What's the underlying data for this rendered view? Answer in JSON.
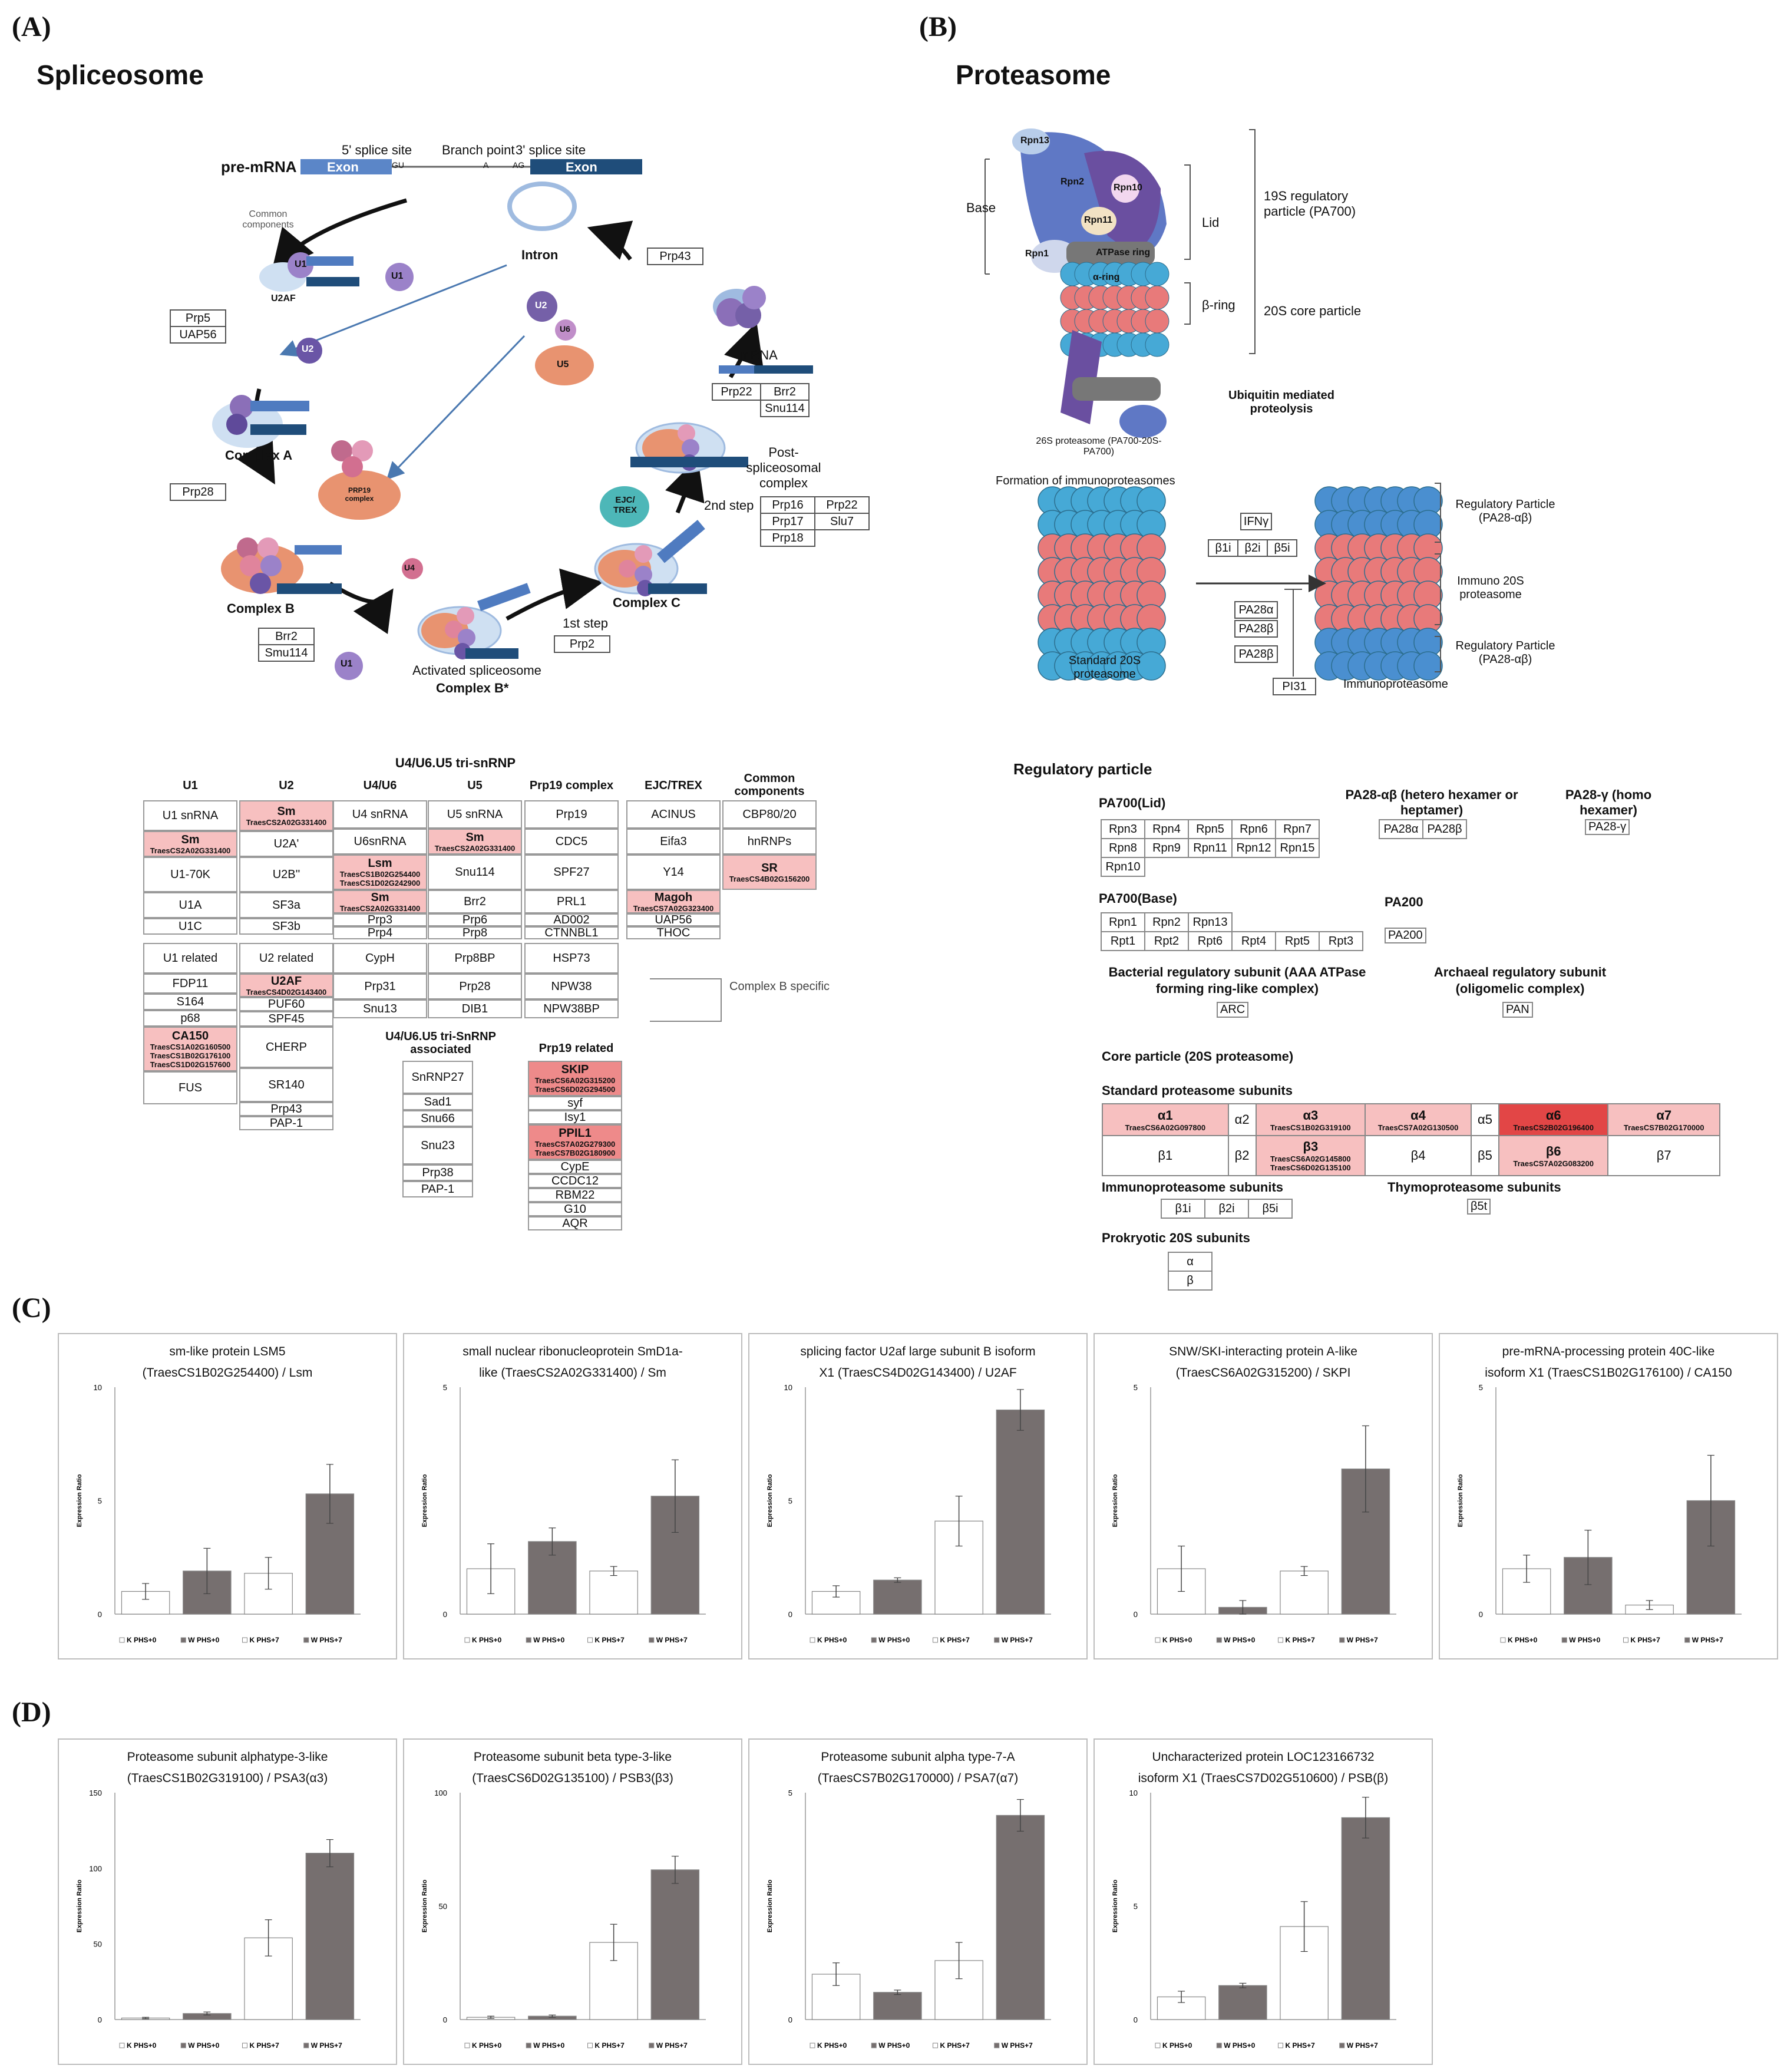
{
  "panels": {
    "A": "(A)",
    "B": "(B)",
    "C": "(C)",
    "D": "(D)"
  },
  "spliceosome": {
    "title": "Spliceosome",
    "premrna": "pre-mRNA",
    "exon1": "Exon",
    "exon2": "Exon",
    "site5": "5' splice site",
    "branch": "Branch point",
    "site3": "3' splice site",
    "gu": "GU",
    "a": "A",
    "ag": "AG",
    "common": "Common components",
    "intron": "Intron",
    "complexA": "Complex A",
    "complexB": "Complex B",
    "complexBstar": "Complex B*",
    "complexC": "Complex C",
    "activated": "Activated spliceosome",
    "post": "Post-spliceosomal complex",
    "mrna": "mRNA",
    "step1": "1st step",
    "step2": "2nd step",
    "prp19complex": "PRP19 complex",
    "ejc": "EJC/ TREX",
    "boxes": {
      "prp5": "Prp5",
      "uap56": "UAP56",
      "prp28": "Prp28",
      "brr2": "Brr2",
      "smu114": "Smu114",
      "prp2": "Prp2",
      "prp43": "Prp43",
      "prp22": "Prp22",
      "brr2b": "Brr2",
      "snu114": "Snu114",
      "prp16": "Prp16",
      "prp22b": "Prp22",
      "prp17": "Prp17",
      "slu7": "Slu7",
      "prp18": "Prp18"
    },
    "particles": {
      "u1": "U1",
      "u2": "U2",
      "u2af": "U2AF",
      "u4": "U4",
      "u5": "U5",
      "u6": "U6"
    },
    "table": {
      "tri_header": "U4/U6.U5 tri-snRNP",
      "cols": [
        "U1",
        "U2",
        "U4/U6",
        "U5",
        "Prp19 complex",
        "EJC/TREX",
        "Common components"
      ],
      "u1": [
        {
          "t": "U1 snRNA"
        },
        {
          "t": "Sm",
          "id": "TraesCS2A02G331400",
          "hl": 1
        },
        {
          "t": "U1-70K"
        },
        {
          "t": "U1A"
        },
        {
          "t": "U1C"
        }
      ],
      "u2": [
        {
          "t": "Sm",
          "id": "TraesCS2A02G331400",
          "hl": 1
        },
        {
          "t": "U2A'"
        },
        {
          "t": "U2B''"
        },
        {
          "t": "SF3a"
        },
        {
          "t": "SF3b"
        }
      ],
      "u46": [
        {
          "t": "U4 snRNA"
        },
        {
          "t": "U6snRNA"
        },
        {
          "t": "Lsm",
          "id": "TraesCS1B02G254400 TraesCS1D02G242900",
          "hl": 1
        },
        {
          "t": "Sm",
          "id": "TraesCS2A02G331400",
          "hl": 1
        },
        {
          "t": "Prp3"
        },
        {
          "t": "Prp4"
        }
      ],
      "u5": [
        {
          "t": "U5 snRNA"
        },
        {
          "t": "Sm",
          "id": "TraesCS2A02G331400",
          "hl": 1
        },
        {
          "t": "Snu114"
        },
        {
          "t": "Brr2"
        },
        {
          "t": "Prp6"
        },
        {
          "t": "Prp8"
        }
      ],
      "prp19": [
        {
          "t": "Prp19"
        },
        {
          "t": "CDC5"
        },
        {
          "t": "SPF27"
        },
        {
          "t": "PRL1"
        },
        {
          "t": "AD002"
        },
        {
          "t": "CTNNBL1"
        }
      ],
      "ejc": [
        {
          "t": "ACINUS"
        },
        {
          "t": "Eifa3"
        },
        {
          "t": "Y14"
        },
        {
          "t": "Magoh",
          "id": "TraesCS7A02G323400",
          "hl": 1
        },
        {
          "t": "UAP56"
        },
        {
          "t": "THOC"
        }
      ],
      "common": [
        {
          "t": "CBP80/20"
        },
        {
          "t": "hnRNPs"
        },
        {
          "t": "SR",
          "id": "TraesCS4B02G156200",
          "hl": 1
        }
      ],
      "u1rel_h": "U1 related",
      "u1rel": [
        {
          "t": "FDP11"
        },
        {
          "t": "S164"
        },
        {
          "t": "p68"
        },
        {
          "t": "CA150",
          "id": "TraesCS1A02G160500 TraesCS1B02G176100 TraesCS1D02G157600",
          "hl": 1
        },
        {
          "t": "FUS"
        }
      ],
      "u2rel_h": "U2 related",
      "u2rel": [
        {
          "t": "U2AF",
          "id": "TraesCS4D02G143400",
          "hl": 1
        },
        {
          "t": "PUF60"
        },
        {
          "t": "SPF45"
        },
        {
          "t": "CHERP"
        },
        {
          "t": "SR140"
        },
        {
          "t": "Prp43"
        },
        {
          "t": "PAP-1"
        }
      ],
      "u46b": [
        "CypH",
        "Prp31",
        "Snu13"
      ],
      "u5b": [
        "Prp8BP",
        "Prp28",
        "DIB1"
      ],
      "prp19b": [
        "HSP73",
        "NPW38",
        "NPW38BP"
      ],
      "bspec": "Complex B specific",
      "assoc_h": "U4/U6.U5 tri-SnRNP associated",
      "assoc": [
        "SnRNP27",
        "Sad1",
        "Snu66",
        "Snu23",
        "Prp38",
        "PAP-1"
      ],
      "prp19rel_h": "Prp19 related",
      "prp19rel": [
        {
          "t": "SKIP",
          "id": "TraesCS6A02G315200 TraesCS6D02G294500",
          "hl": 2
        },
        {
          "t": "syf"
        },
        {
          "t": "Isy1"
        },
        {
          "t": "PPIL1",
          "id": "TraesCS7A02G279300 TraesCS7B02G180900",
          "hl": 2
        },
        {
          "t": "CypE"
        },
        {
          "t": "CCDC12"
        },
        {
          "t": "RBM22"
        },
        {
          "t": "G10"
        },
        {
          "t": "AQR"
        }
      ]
    }
  },
  "proteasome": {
    "title": "Proteasome",
    "base": "Base",
    "lid": "Lid",
    "rp19": "19S regulatory particle (PA700)",
    "cp20": "20S core particle",
    "bring": "β-ring",
    "aring": "α-ring",
    "atpase": "ATPase ring",
    "ubiq": "Ubiquitin mediated proteolysis",
    "p26": "26S proteasome (PA700-20S-PA700)",
    "rpn13": "Rpn13",
    "rpn2": "Rpn2",
    "rpn10": "Rpn10",
    "rpn11": "Rpn11",
    "rpn1": "Rpn1",
    "formation": "Formation of immunoproteasomes",
    "ifn": "IFNγ",
    "b1i": "β1i",
    "b2i": "β2i",
    "b5i": "β5i",
    "pa28a": "PA28α",
    "pa28b1": "PA28β",
    "pa28b2": "PA28β",
    "pi31": "PI31",
    "std20s": "Standard 20S proteasome",
    "immuno": "Immunoproteasome",
    "regA": "Regulatory Particle (PA28-αβ)",
    "immuno20s": "Immuno 20S proteasome",
    "regB": "Regulatory Particle (PA28-αβ)",
    "reg_title": "Regulatory particle",
    "lid_title": "PA700(Lid)",
    "lid_rows": [
      [
        "Rpn3",
        "Rpn4",
        "Rpn5",
        "Rpn6",
        "Rpn7"
      ],
      [
        "Rpn8",
        "Rpn9",
        "Rpn11",
        "Rpn12",
        "Rpn15"
      ],
      [
        "Rpn10"
      ]
    ],
    "pa28ab_title": "PA28-αβ (hetero hexamer or heptamer)",
    "pa28ab": [
      "PA28α",
      "PA28β"
    ],
    "pa28y_title": "PA28-γ (homo hexamer)",
    "pa28y": "PA28-γ",
    "base_title": "PA700(Base)",
    "base_rows": [
      [
        "Rpn1",
        "Rpn2",
        "Rpn13"
      ],
      [
        "Rpt1",
        "Rpt2",
        "Rpt6",
        "Rpt4",
        "Rpt5",
        "Rpt3"
      ]
    ],
    "pa200_title": "PA200",
    "pa200": "PA200",
    "bact_title": "Bacterial regulatory subunit (AAA ATPase forming ring-like complex)",
    "arc": "ARC",
    "arch_title": "Archaeal regulatory subunit (oligomelic complex)",
    "pan": "PAN",
    "core_title": "Core particle (20S proteasome)",
    "std_title": "Standard proteasome subunits",
    "std_row1": [
      {
        "t": "α1",
        "id": "TraesCS6A02G097800",
        "hl": 1
      },
      {
        "t": "α2"
      },
      {
        "t": "α3",
        "id": "TraesCS1B02G319100",
        "hl": 1
      },
      {
        "t": "α4",
        "id": "TraesCS7A02G130500",
        "hl": 1
      },
      {
        "t": "α5"
      },
      {
        "t": "α6",
        "id": "TraesCS2B02G196400",
        "hl": 3
      },
      {
        "t": "α7",
        "id": "TraesCS7B02G170000",
        "hl": 1
      }
    ],
    "std_row2": [
      {
        "t": "β1"
      },
      {
        "t": "β2"
      },
      {
        "t": "β3",
        "id": "TraesCS6A02G145800 TraesCS6D02G135100",
        "hl": 1
      },
      {
        "t": "β4"
      },
      {
        "t": "β5"
      },
      {
        "t": "β6",
        "id": "TraesCS7A02G083200",
        "hl": 1
      },
      {
        "t": "β7"
      }
    ],
    "immuno_title": "Immunoproteasome subunits",
    "immuno_cells": [
      "β1i",
      "β2i",
      "β5i"
    ],
    "thymo_title": "Thymoproteasome subunits",
    "thymo": "β5t",
    "prok_title": "Prokryotic 20S subunits",
    "prok": [
      "α",
      "β"
    ]
  },
  "charts_C": [
    {
      "title1": "sm-like protein LSM5",
      "title2": "(TraesCS1B02G254400) / Lsm",
      "ymax": 10,
      "ticks": [
        0,
        5,
        10
      ],
      "values": [
        1.0,
        1.9,
        1.8,
        5.3
      ],
      "errors": [
        0.35,
        1.0,
        0.7,
        1.3
      ]
    },
    {
      "title1": "small nuclear ribonucleoprotein SmD1a-",
      "title2": "like (TraesCS2A02G331400) / Sm",
      "ymax": 5,
      "ticks": [
        0,
        5
      ],
      "values": [
        1.0,
        1.6,
        0.95,
        2.6
      ],
      "errors": [
        0.55,
        0.3,
        0.1,
        0.8
      ]
    },
    {
      "title1": "splicing factor U2af large subunit B isoform",
      "title2": "X1 (TraesCS4D02G143400) / U2AF",
      "ymax": 10,
      "ticks": [
        0,
        5,
        10
      ],
      "values": [
        1.0,
        1.5,
        4.1,
        9.0
      ],
      "errors": [
        0.25,
        0.1,
        1.1,
        0.9
      ]
    },
    {
      "title1": "SNW/SKI-interacting protein A-like",
      "title2": "(TraesCS6A02G315200) / SKPI",
      "ymax": 5,
      "ticks": [
        0,
        5
      ],
      "values": [
        1.0,
        0.15,
        0.95,
        3.2
      ],
      "errors": [
        0.5,
        0.15,
        0.1,
        0.95
      ]
    },
    {
      "title1": "pre-mRNA-processing protein 40C-like",
      "title2": "isoform X1 (TraesCS1B02G176100) / CA150",
      "ymax": 5,
      "ticks": [
        0,
        5
      ],
      "values": [
        1.0,
        1.25,
        0.2,
        2.5
      ],
      "errors": [
        0.3,
        0.6,
        0.1,
        1.0
      ]
    }
  ],
  "charts_D": [
    {
      "title1": "Proteasome subunit alphatype-3-like",
      "title2": "(TraesCS1B02G319100) / PSA3(α3)",
      "ymax": 150,
      "ticks": [
        0,
        50,
        100,
        150
      ],
      "values": [
        1,
        4,
        54,
        110
      ],
      "errors": [
        0.5,
        1,
        12,
        9
      ]
    },
    {
      "title1": "Proteasome subunit beta type-3-like",
      "title2": "(TraesCS6D02G135100) / PSB3(β3)",
      "ymax": 100,
      "ticks": [
        0,
        50,
        100
      ],
      "values": [
        1,
        1.5,
        34,
        66
      ],
      "errors": [
        0.5,
        0.5,
        8,
        6
      ]
    },
    {
      "title1": "Proteasome subunit alpha type-7-A",
      "title2": "(TraesCS7B02G170000) / PSA7(α7)",
      "ymax": 5,
      "ticks": [
        0,
        5
      ],
      "values": [
        1.0,
        0.6,
        1.3,
        4.5
      ],
      "errors": [
        0.25,
        0.05,
        0.4,
        0.35
      ]
    },
    {
      "title1": "Uncharacterized protein LOC123166732",
      "title2": "isoform X1 (TraesCS7D02G510600) / PSB(β)",
      "ymax": 10,
      "ticks": [
        0,
        5,
        10
      ],
      "values": [
        1.0,
        1.5,
        4.1,
        8.9
      ],
      "errors": [
        0.25,
        0.1,
        1.1,
        0.9
      ]
    }
  ],
  "chart_common": {
    "ylabel": "Expression Ratio",
    "legend": [
      "K PHS+0",
      "W PHS+0",
      "K PHS+7",
      "W PHS+7"
    ],
    "fills": [
      "#ffffff",
      "#766f6f",
      "#ffffff",
      "#766f6f"
    ]
  },
  "chart_data": [
    {
      "type": "bar",
      "title": "sm-like protein LSM5 (TraesCS1B02G254400) / Lsm",
      "categories": [
        "K PHS+0",
        "W PHS+0",
        "K PHS+7",
        "W PHS+7"
      ],
      "values": [
        1.0,
        1.9,
        1.8,
        5.3
      ],
      "ylabel": "Expression Ratio",
      "ylim": [
        0,
        10
      ]
    },
    {
      "type": "bar",
      "title": "small nuclear ribonucleoprotein SmD1a-like (TraesCS2A02G331400) / Sm",
      "categories": [
        "K PHS+0",
        "W PHS+0",
        "K PHS+7",
        "W PHS+7"
      ],
      "values": [
        1.0,
        1.6,
        0.95,
        2.6
      ],
      "ylabel": "Expression Ratio",
      "ylim": [
        0,
        5
      ]
    },
    {
      "type": "bar",
      "title": "splicing factor U2af large subunit B isoform X1 (TraesCS4D02G143400) / U2AF",
      "categories": [
        "K PHS+0",
        "W PHS+0",
        "K PHS+7",
        "W PHS+7"
      ],
      "values": [
        1.0,
        1.5,
        4.1,
        9.0
      ],
      "ylabel": "Expression Ratio",
      "ylim": [
        0,
        10
      ]
    },
    {
      "type": "bar",
      "title": "SNW/SKI-interacting protein A-like (TraesCS6A02G315200) / SKPI",
      "categories": [
        "K PHS+0",
        "W PHS+0",
        "K PHS+7",
        "W PHS+7"
      ],
      "values": [
        1.0,
        0.15,
        0.95,
        3.2
      ],
      "ylabel": "Expression Ratio",
      "ylim": [
        0,
        5
      ]
    },
    {
      "type": "bar",
      "title": "pre-mRNA-processing protein 40C-like isoform X1 (TraesCS1B02G176100) / CA150",
      "categories": [
        "K PHS+0",
        "W PHS+0",
        "K PHS+7",
        "W PHS+7"
      ],
      "values": [
        1.0,
        1.25,
        0.2,
        2.5
      ],
      "ylabel": "Expression Ratio",
      "ylim": [
        0,
        5
      ]
    },
    {
      "type": "bar",
      "title": "Proteasome subunit alphatype-3-like (TraesCS1B02G319100) / PSA3(α3)",
      "categories": [
        "K PHS+0",
        "W PHS+0",
        "K PHS+7",
        "W PHS+7"
      ],
      "values": [
        1,
        4,
        54,
        110
      ],
      "ylabel": "Expression Ratio",
      "ylim": [
        0,
        150
      ]
    },
    {
      "type": "bar",
      "title": "Proteasome subunit beta type-3-like (TraesCS6D02G135100) / PSB3(β3)",
      "categories": [
        "K PHS+0",
        "W PHS+0",
        "K PHS+7",
        "W PHS+7"
      ],
      "values": [
        1,
        1.5,
        34,
        66
      ],
      "ylabel": "Expression Ratio",
      "ylim": [
        0,
        100
      ]
    },
    {
      "type": "bar",
      "title": "Proteasome subunit alpha type-7-A (TraesCS7B02G170000) / PSA7(α7)",
      "categories": [
        "K PHS+0",
        "W PHS+0",
        "K PHS+7",
        "W PHS+7"
      ],
      "values": [
        1.0,
        0.6,
        1.3,
        4.5
      ],
      "ylabel": "Expression Ratio",
      "ylim": [
        0,
        5
      ]
    },
    {
      "type": "bar",
      "title": "Uncharacterized protein LOC123166732 isoform X1 (TraesCS7D02G510600) / PSB(β)",
      "categories": [
        "K PHS+0",
        "W PHS+0",
        "K PHS+7",
        "W PHS+7"
      ],
      "values": [
        1.0,
        1.5,
        4.1,
        8.9
      ],
      "ylabel": "Expression Ratio",
      "ylim": [
        0,
        10
      ]
    }
  ]
}
